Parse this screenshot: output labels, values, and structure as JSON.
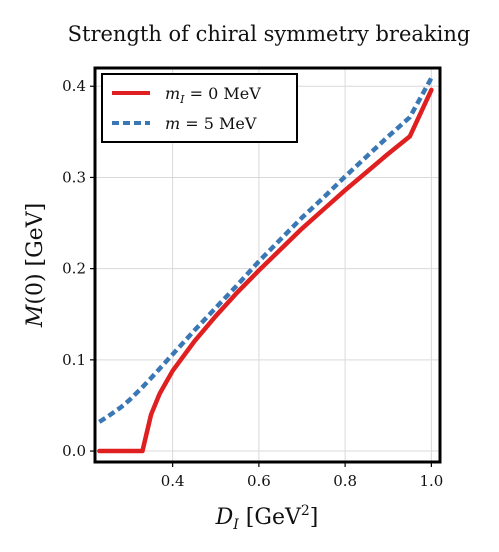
{
  "chart_data": {
    "type": "line",
    "title": "Strength of chiral symmetry breaking",
    "xlabel": "D_I [GeV²]",
    "ylabel": "M(0) [GeV]",
    "xlim": [
      0.22,
      1.02
    ],
    "ylim": [
      -0.012,
      0.42
    ],
    "xticks": [
      0.4,
      0.6,
      0.8,
      1.0
    ],
    "xtick_labels": [
      "0.4",
      "0.6",
      "0.8",
      "1.0"
    ],
    "yticks": [
      0.0,
      0.1,
      0.2,
      0.3,
      0.4
    ],
    "ytick_labels": [
      "0.0",
      "0.1",
      "0.2",
      "0.3",
      "0.4"
    ],
    "grid": true,
    "legend_position": "top-left",
    "series": [
      {
        "name": "m_I = 0 MeV",
        "legend_label": "mI = 0 MeV",
        "color": "#e02020",
        "style": "solid",
        "x": [
          0.23,
          0.3,
          0.33,
          0.35,
          0.37,
          0.4,
          0.45,
          0.5,
          0.55,
          0.6,
          0.65,
          0.7,
          0.75,
          0.8,
          0.85,
          0.9,
          0.95,
          1.0
        ],
        "y": [
          0.0,
          0.0,
          0.0,
          0.04,
          0.063,
          0.088,
          0.12,
          0.148,
          0.174,
          0.198,
          0.221,
          0.244,
          0.265,
          0.286,
          0.306,
          0.326,
          0.345,
          0.396
        ]
      },
      {
        "name": "m = 5 MeV",
        "legend_label": "m = 5 MeV",
        "color": "#3a78b5",
        "style": "dashed",
        "x": [
          0.23,
          0.25,
          0.28,
          0.3,
          0.33,
          0.35,
          0.4,
          0.45,
          0.5,
          0.55,
          0.6,
          0.65,
          0.7,
          0.75,
          0.8,
          0.85,
          0.9,
          0.95,
          1.0
        ],
        "y": [
          0.032,
          0.038,
          0.048,
          0.056,
          0.07,
          0.08,
          0.106,
          0.132,
          0.157,
          0.182,
          0.208,
          0.232,
          0.256,
          0.278,
          0.301,
          0.323,
          0.345,
          0.366,
          0.409
        ]
      }
    ]
  }
}
